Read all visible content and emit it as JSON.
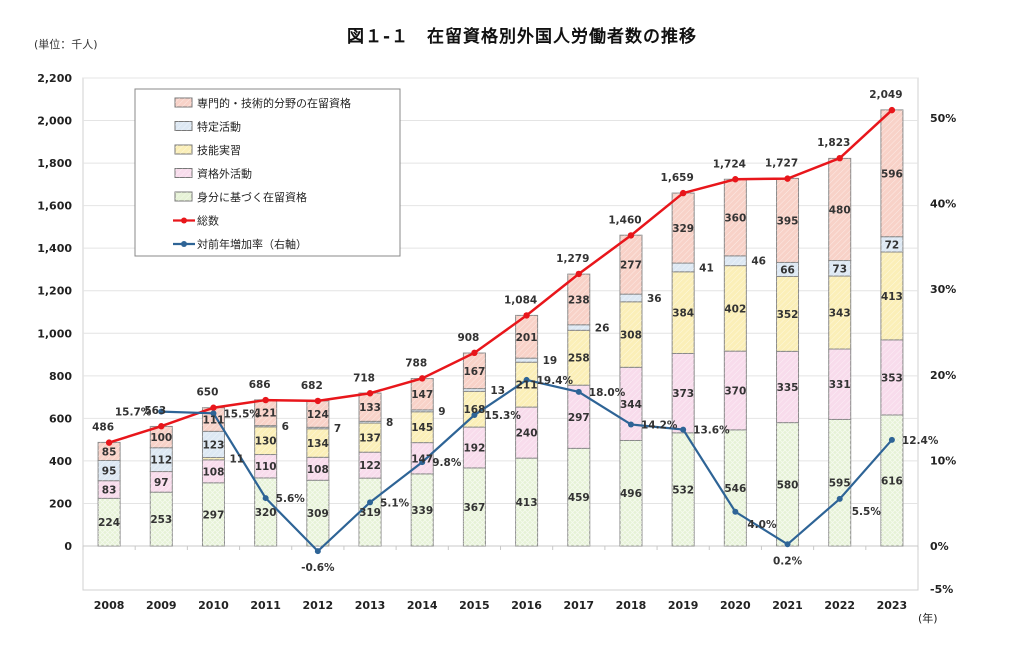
{
  "title": "図１-１　在留資格別外国人労働者数の推移",
  "unit_label": "(単位：千人)",
  "chart_data": {
    "type": "bar",
    "subtype": "stacked-bar-with-lines",
    "title": "図１-１　在留資格別外国人労働者数の推移",
    "unit": "(単位：千人)",
    "xlabel": "(年)",
    "categories": [
      "2008",
      "2009",
      "2010",
      "2011",
      "2012",
      "2013",
      "2014",
      "2015",
      "2016",
      "2017",
      "2018",
      "2019",
      "2020",
      "2021",
      "2022",
      "2023"
    ],
    "series": [
      {
        "name": "身分に基づく在留資格",
        "color": "#e6f2d6",
        "stroke": "#a8cc88",
        "values": [
          224,
          253,
          297,
          320,
          309,
          319,
          339,
          367,
          413,
          459,
          496,
          532,
          546,
          580,
          595,
          616
        ]
      },
      {
        "name": "資格外活動",
        "color": "#f8dcec",
        "stroke": "#e6a8c8",
        "values": [
          83,
          97,
          108,
          110,
          108,
          122,
          147,
          192,
          240,
          297,
          344,
          373,
          370,
          335,
          331,
          353
        ]
      },
      {
        "name": "技能実習",
        "color": "#fbefb8",
        "stroke": "#e6cf7a",
        "values": [
          null,
          null,
          11,
          130,
          134,
          137,
          145,
          168,
          211,
          258,
          308,
          384,
          402,
          352,
          343,
          413
        ]
      },
      {
        "name": "特定活動",
        "color": "#dde8f3",
        "stroke": "#a9bfd6",
        "values": [
          95,
          112,
          123,
          6,
          7,
          8,
          9,
          13,
          19,
          26,
          36,
          41,
          46,
          66,
          73,
          72
        ]
      },
      {
        "name": "専門的・技術的分野の在留資格",
        "color": "#f8d2c8",
        "stroke": "#e39a88",
        "values": [
          85,
          100,
          111,
          121,
          124,
          133,
          147,
          167,
          201,
          238,
          277,
          329,
          360,
          395,
          480,
          596
        ]
      }
    ],
    "lines": [
      {
        "name": "総数",
        "color": "#e8161b",
        "axis": "left",
        "values": [
          486,
          563,
          650,
          686,
          682,
          718,
          788,
          908,
          1084,
          1279,
          1460,
          1659,
          1724,
          1727,
          1823,
          2049
        ]
      },
      {
        "name": "対前年増加率（右軸）",
        "color": "#2e6496",
        "axis": "right",
        "unit": "%",
        "values": [
          null,
          15.7,
          15.5,
          5.6,
          -0.6,
          5.1,
          9.8,
          15.3,
          19.4,
          18.0,
          14.2,
          13.6,
          4.0,
          0.2,
          5.5,
          12.4
        ]
      }
    ],
    "total_labels": [
      "486",
      "563",
      "650",
      "686",
      "682",
      "718",
      "788",
      "908",
      "1,084",
      "1,279",
      "1,460",
      "1,659",
      "1,724",
      "1,727",
      "1,823",
      "2,049"
    ],
    "pct_labels": [
      "",
      "15.7%",
      "15.5%",
      "5.6%",
      "-0.6%",
      "5.1%",
      "9.8%",
      "15.3%",
      "19.4%",
      "18.0%",
      "14.2%",
      "13.6%",
      "4.0%",
      "0.2%",
      "5.5%",
      "12.4%"
    ],
    "ylim": [
      0,
      2200
    ],
    "yticks": [
      0,
      200,
      400,
      600,
      800,
      1000,
      1200,
      1400,
      1600,
      1800,
      2000,
      2200
    ],
    "ytick_labels": [
      "0",
      "200",
      "400",
      "600",
      "800",
      "1,000",
      "1,200",
      "1,400",
      "1,600",
      "1,800",
      "2,000",
      "2,200"
    ],
    "y2lim": [
      -5,
      50
    ],
    "y2ticks": [
      -5,
      0,
      10,
      20,
      30,
      40,
      50
    ],
    "y2tick_labels": [
      "-5%",
      "0%",
      "10%",
      "20%",
      "30%",
      "40%",
      "50%"
    ],
    "grid": true,
    "legend_position": "top-left",
    "legend": [
      {
        "label": "専門的・技術的分野の在留資格",
        "kind": "box",
        "color": "#f8d2c8",
        "stroke": "#e39a88"
      },
      {
        "label": "特定活動",
        "kind": "box",
        "color": "#dde8f3",
        "stroke": "#a9bfd6"
      },
      {
        "label": "技能実習",
        "kind": "box",
        "color": "#fbefb8",
        "stroke": "#e6cf7a"
      },
      {
        "label": "資格外活動",
        "kind": "box",
        "color": "#f8dcec",
        "stroke": "#e6a8c8"
      },
      {
        "label": "身分に基づく在留資格",
        "kind": "box",
        "color": "#e6f2d6",
        "stroke": "#a8cc88"
      },
      {
        "label": "総数",
        "kind": "line",
        "color": "#e8161b"
      },
      {
        "label": "対前年増加率（右軸）",
        "kind": "line",
        "color": "#2e6496"
      }
    ]
  }
}
